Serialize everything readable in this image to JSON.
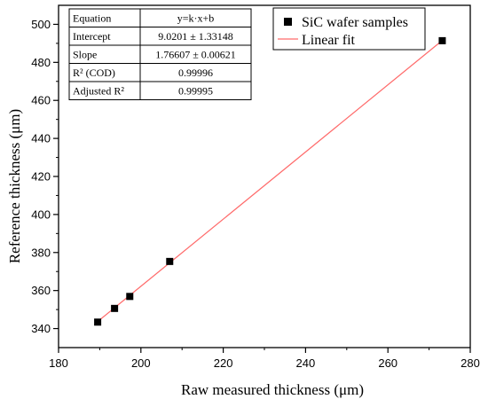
{
  "chart_data": {
    "type": "scatter",
    "xlabel": "Raw measured thickness (μm)",
    "ylabel": "Reference thickness (μm)",
    "xlim": [
      180,
      280
    ],
    "ylim": [
      330,
      510
    ],
    "xticks": [
      180,
      200,
      220,
      240,
      260,
      280
    ],
    "yticks": [
      340,
      360,
      380,
      400,
      420,
      440,
      460,
      480,
      500
    ],
    "series": [
      {
        "name": "SiC wafer samples",
        "x": [
          189.5,
          193.6,
          197.3,
          207.0,
          273.2
        ],
        "y": [
          343.4,
          350.6,
          356.9,
          375.3,
          491.4
        ]
      }
    ],
    "fit": {
      "name": "Linear fit",
      "intercept": 9.0201,
      "slope": 1.76607,
      "x_range": [
        189.5,
        273.2
      ],
      "color": "#ff6a6a"
    },
    "stats_table": [
      {
        "label": "Equation",
        "value": "y=k·x+b"
      },
      {
        "label": "Intercept",
        "value": "9.0201 ± 1.33148"
      },
      {
        "label": "Slope",
        "value": "1.76607 ± 0.00621"
      },
      {
        "label": "R² (COD)",
        "value": "0.99996"
      },
      {
        "label": "Adjusted R²",
        "value": "0.99995"
      }
    ],
    "grid": false,
    "legend_position": "top-right"
  }
}
